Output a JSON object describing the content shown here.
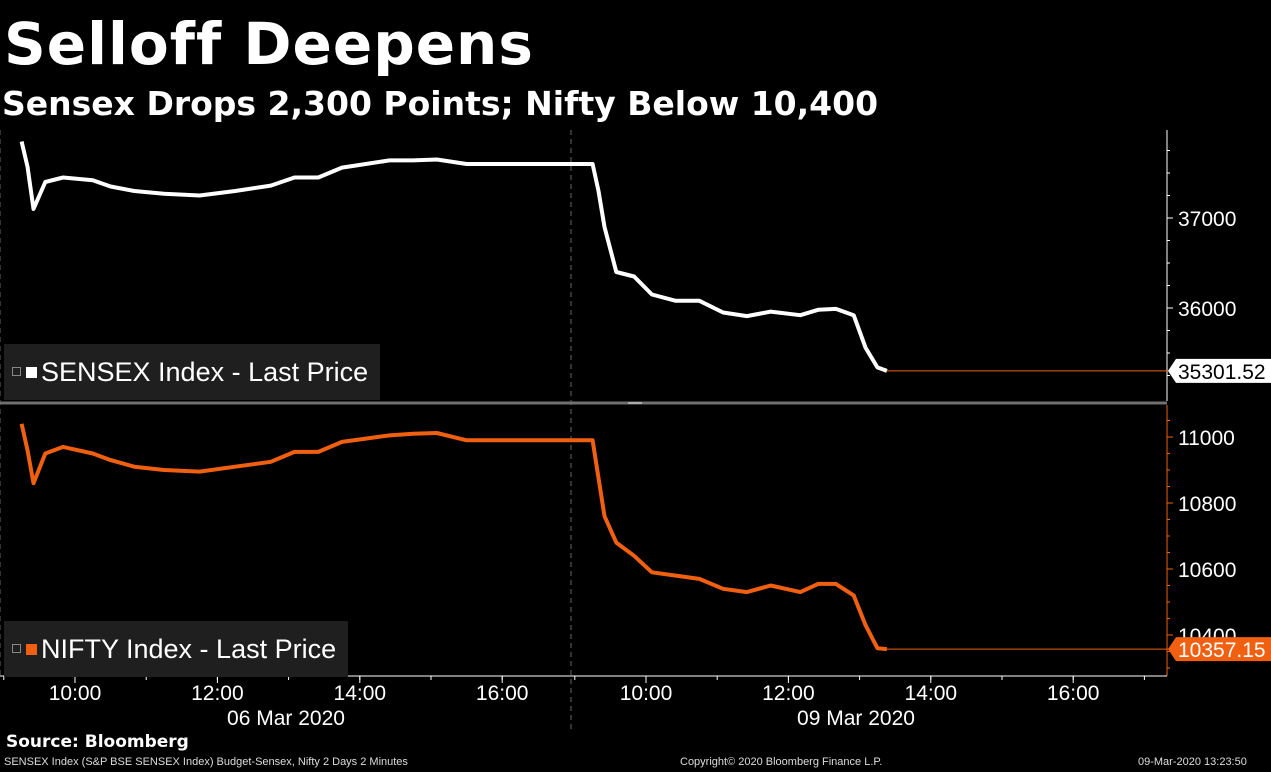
{
  "title": "Selloff Deepens",
  "subtitle": "Sensex Drops 2,300 Points; Nifty Below 10,400",
  "source": "Source: Bloomberg",
  "footer": {
    "left": "SENSEX Index (S&P BSE SENSEX Index) Budget-Sensex, Nifty 2 Days 2 Minutes",
    "center": "Copyright© 2020 Bloomberg Finance L.P.",
    "right": "09-Mar-2020 13:23:50"
  },
  "colors": {
    "sensex": "#ffffff",
    "nifty": "#f06010",
    "background": "#000000"
  },
  "chart_data": [
    {
      "type": "line",
      "legend": "SENSEX Index - Last Price",
      "last_value_label": "35301.52",
      "y_ticks": [
        36000,
        37000
      ],
      "ylim": [
        35050,
        38000
      ],
      "x_ticks": [
        "10:00",
        "12:00",
        "14:00",
        "16:00",
        "10:00",
        "12:00",
        "14:00",
        "16:00"
      ],
      "date_labels": [
        "06 Mar 2020",
        "09 Mar 2020"
      ],
      "series": [
        {
          "day": "06 Mar 2020",
          "points": [
            [
              "09:15",
              37850
            ],
            [
              "09:20",
              37570
            ],
            [
              "09:25",
              37100
            ],
            [
              "09:35",
              37400
            ],
            [
              "09:50",
              37450
            ],
            [
              "10:15",
              37420
            ],
            [
              "10:30",
              37350
            ],
            [
              "10:50",
              37300
            ],
            [
              "11:15",
              37270
            ],
            [
              "11:45",
              37250
            ],
            [
              "12:15",
              37300
            ],
            [
              "12:45",
              37360
            ],
            [
              "13:05",
              37450
            ],
            [
              "13:25",
              37450
            ],
            [
              "13:45",
              37560
            ],
            [
              "14:05",
              37600
            ],
            [
              "14:25",
              37640
            ],
            [
              "14:45",
              37640
            ],
            [
              "15:05",
              37650
            ],
            [
              "15:30",
              37600
            ]
          ]
        },
        {
          "day": "09 Mar 2020",
          "points": [
            [
              "09:15",
              37600
            ],
            [
              "09:20",
              37300
            ],
            [
              "09:25",
              36900
            ],
            [
              "09:35",
              36400
            ],
            [
              "09:50",
              36350
            ],
            [
              "10:05",
              36150
            ],
            [
              "10:25",
              36080
            ],
            [
              "10:45",
              36080
            ],
            [
              "11:05",
              35950
            ],
            [
              "11:25",
              35910
            ],
            [
              "11:45",
              35960
            ],
            [
              "12:10",
              35920
            ],
            [
              "12:25",
              35980
            ],
            [
              "12:40",
              35990
            ],
            [
              "12:55",
              35920
            ],
            [
              "13:05",
              35560
            ],
            [
              "13:15",
              35340
            ],
            [
              "13:23",
              35301.52
            ]
          ]
        }
      ]
    },
    {
      "type": "line",
      "legend": "NIFTY Index - Last Price",
      "last_value_label": "10357.15",
      "y_ticks": [
        10400,
        10600,
        10800,
        11000
      ],
      "ylim": [
        10270,
        11050
      ],
      "series": [
        {
          "day": "06 Mar 2020",
          "points": [
            [
              "09:15",
              11040
            ],
            [
              "09:20",
              10960
            ],
            [
              "09:25",
              10860
            ],
            [
              "09:35",
              10950
            ],
            [
              "09:50",
              10970
            ],
            [
              "10:15",
              10950
            ],
            [
              "10:30",
              10930
            ],
            [
              "10:50",
              10910
            ],
            [
              "11:15",
              10900
            ],
            [
              "11:45",
              10895
            ],
            [
              "12:15",
              10910
            ],
            [
              "12:45",
              10925
            ],
            [
              "13:05",
              10955
            ],
            [
              "13:25",
              10955
            ],
            [
              "13:45",
              10985
            ],
            [
              "14:05",
              10995
            ],
            [
              "14:25",
              11005
            ],
            [
              "14:45",
              11010
            ],
            [
              "15:05",
              11012
            ],
            [
              "15:30",
              10990
            ]
          ]
        },
        {
          "day": "09 Mar 2020",
          "points": [
            [
              "09:15",
              10990
            ],
            [
              "09:25",
              10760
            ],
            [
              "09:35",
              10680
            ],
            [
              "09:50",
              10640
            ],
            [
              "10:05",
              10590
            ],
            [
              "10:25",
              10580
            ],
            [
              "10:45",
              10570
            ],
            [
              "11:05",
              10540
            ],
            [
              "11:25",
              10530
            ],
            [
              "11:45",
              10550
            ],
            [
              "12:10",
              10530
            ],
            [
              "12:25",
              10555
            ],
            [
              "12:40",
              10555
            ],
            [
              "12:55",
              10520
            ],
            [
              "13:05",
              10430
            ],
            [
              "13:15",
              10360
            ],
            [
              "13:23",
              10357.15
            ]
          ]
        }
      ]
    }
  ]
}
